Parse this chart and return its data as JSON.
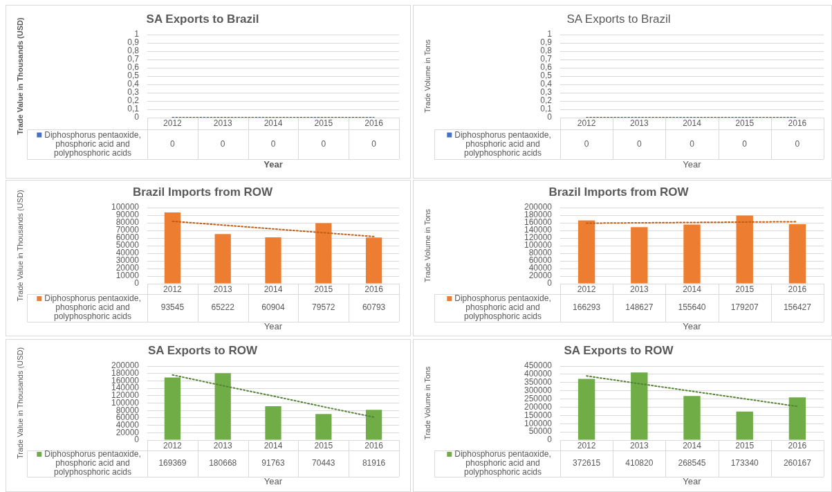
{
  "chart_data": [
    {
      "type": "bar",
      "title": "SA Exports to Brazil",
      "xlabel": "Year",
      "ylabel": "Trade Value in Thousands (USD)",
      "categories": [
        "2012",
        "2013",
        "2014",
        "2015",
        "2016"
      ],
      "series": [
        {
          "name": "Diphosphorus pentaoxide, phosphoric acid and polyphosphoric acids",
          "color": "#4472c4",
          "values": [
            0,
            0,
            0,
            0,
            0
          ],
          "value_labels": [
            "0",
            "0",
            "0",
            "0",
            "0"
          ]
        },
        {
          "type": "line",
          "color": "#2f5597",
          "values": [
            0,
            0,
            0,
            0,
            0
          ]
        }
      ],
      "ylim": [
        0,
        1
      ],
      "yticks": [
        0,
        {
          "value": 0.1,
          "label": "0,1"
        },
        {
          "value": 0.2,
          "label": "0,2"
        },
        {
          "value": 0.3,
          "label": "0,3"
        },
        {
          "value": 0.4,
          "label": "0,4"
        },
        {
          "value": 0.5,
          "label": "0,5"
        },
        {
          "value": 0.6,
          "label": "0,6"
        },
        {
          "value": 0.7,
          "label": "0,7"
        },
        {
          "value": 0.8,
          "label": "0,8"
        },
        {
          "value": 0.9,
          "label": "0,9"
        },
        1
      ],
      "grid": "y",
      "legend": "bottom left",
      "line_style": "dotted"
    },
    {
      "type": "bar",
      "title": "SA Exports to Brazil",
      "xlabel": "Year",
      "ylabel": "Trade Volume in Tons",
      "categories": [
        "2012",
        "2013",
        "2014",
        "2015",
        "2016"
      ],
      "series": [
        {
          "name": "Diphosphorus pentaoxide, phosphoric acid and polyphosphoric acids",
          "color": "#4472c4",
          "values": [
            0,
            0,
            0,
            0,
            0
          ],
          "value_labels": [
            "0",
            "0",
            "0",
            "0",
            "0"
          ]
        },
        {
          "type": "line",
          "color": "#2f5597",
          "values": [
            0,
            0,
            0,
            0,
            0
          ]
        }
      ],
      "ylim": [
        0,
        1
      ],
      "yticks": [
        0,
        {
          "value": 0.1,
          "label": "0,1"
        },
        {
          "value": 0.2,
          "label": "0,2"
        },
        {
          "value": 0.3,
          "label": "0,3"
        },
        {
          "value": 0.4,
          "label": "0,4"
        },
        {
          "value": 0.5,
          "label": "0,5"
        },
        {
          "value": 0.6,
          "label": "0,6"
        },
        {
          "value": 0.7,
          "label": "0,7"
        },
        {
          "value": 0.8,
          "label": "0,8"
        },
        {
          "value": 0.9,
          "label": "0,9"
        },
        1
      ],
      "grid": "y",
      "legend": "bottom left",
      "line_style": "dotted"
    },
    {
      "type": "bar",
      "title": "Brazil Imports from ROW",
      "xlabel": "Year",
      "ylabel": "Trade Value in Thousands (USD)",
      "categories": [
        "2012",
        "2013",
        "2014",
        "2015",
        "2016"
      ],
      "series": [
        {
          "name": "Diphosphorus pentaoxide, phosphoric acid and polyphosphoric acids",
          "color": "#ed7d31",
          "values": [
            93545,
            65222,
            60904,
            79572,
            60793
          ],
          "value_labels": [
            "93545",
            "65222",
            "60904",
            "79572",
            "60793"
          ]
        },
        {
          "type": "line",
          "color": "#c55a11",
          "values": [
            82000,
            77000,
            72000,
            67000,
            62000
          ]
        }
      ],
      "ylim": [
        0,
        100000
      ],
      "yticks": [
        0,
        10000,
        20000,
        30000,
        40000,
        50000,
        60000,
        70000,
        80000,
        90000,
        100000
      ],
      "grid": "y",
      "legend": "bottom left",
      "line_style": "dotted"
    },
    {
      "type": "bar",
      "title": "Brazil Imports from ROW",
      "xlabel": "Year",
      "ylabel": "Trade Volume in Tons",
      "categories": [
        "2012",
        "2013",
        "2014",
        "2015",
        "2016"
      ],
      "series": [
        {
          "name": "Diphosphorus pentaoxide, phosphoric acid and polyphosphoric acids",
          "color": "#ed7d31",
          "values": [
            166293,
            148627,
            155640,
            179207,
            156427
          ],
          "value_labels": [
            "166293",
            "148627",
            "155640",
            "179207",
            "156427"
          ]
        },
        {
          "type": "line",
          "color": "#c55a11",
          "values": [
            159000,
            160000,
            161000,
            162000,
            163000
          ]
        }
      ],
      "ylim": [
        0,
        200000
      ],
      "yticks": [
        0,
        20000,
        40000,
        60000,
        80000,
        100000,
        120000,
        140000,
        160000,
        180000,
        200000
      ],
      "grid": "y",
      "legend": "bottom left",
      "line_style": "dotted"
    },
    {
      "type": "bar",
      "title": "SA Exports to ROW",
      "xlabel": "Year",
      "ylabel": "Trade Value in Thousands (USD)",
      "categories": [
        "2012",
        "2013",
        "2014",
        "2015",
        "2016"
      ],
      "series": [
        {
          "name": "Diphosphorus pentaoxide, phosphoric acid and polyphosphoric acids",
          "color": "#70ad47",
          "values": [
            169369,
            180668,
            91763,
            70443,
            81916
          ],
          "value_labels": [
            "169369",
            "180668",
            "91763",
            "70443",
            "81916"
          ]
        },
        {
          "type": "line",
          "color": "#548235",
          "values": [
            176000,
            147000,
            119000,
            90000,
            62000
          ]
        }
      ],
      "ylim": [
        0,
        200000
      ],
      "yticks": [
        0,
        20000,
        40000,
        60000,
        80000,
        100000,
        120000,
        140000,
        160000,
        180000,
        200000
      ],
      "grid": "y",
      "legend": "bottom left",
      "line_style": "dotted"
    },
    {
      "type": "bar",
      "title": "SA Exports to ROW",
      "xlabel": "Year",
      "ylabel": "Trade Volume in Tons",
      "categories": [
        "2012",
        "2013",
        "2014",
        "2015",
        "2016"
      ],
      "series": [
        {
          "name": "Diphosphorus pentaoxide, phosphoric acid and polyphosphoric acids",
          "color": "#70ad47",
          "values": [
            372615,
            410820,
            268545,
            173340,
            260167
          ],
          "value_labels": [
            "372615",
            "410820",
            "268545",
            "173340",
            "260167"
          ]
        },
        {
          "type": "line",
          "color": "#548235",
          "values": [
            390000,
            343000,
            297000,
            251000,
            205000
          ]
        }
      ],
      "ylim": [
        0,
        450000
      ],
      "yticks": [
        0,
        50000,
        100000,
        150000,
        200000,
        250000,
        300000,
        350000,
        400000,
        450000
      ],
      "grid": "y",
      "legend": "bottom left",
      "line_style": "dotted"
    }
  ]
}
